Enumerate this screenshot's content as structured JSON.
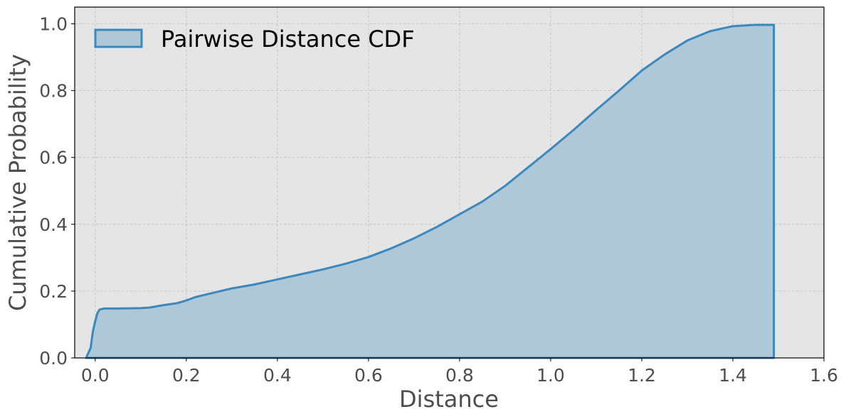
{
  "chart_data": {
    "type": "area",
    "title": "",
    "xlabel": "Distance",
    "ylabel": "Cumulative Probability",
    "xlim": [
      -0.045,
      1.6
    ],
    "ylim": [
      0,
      1.05
    ],
    "xticks": [
      0.0,
      0.2,
      0.4,
      0.6,
      0.8,
      1.0,
      1.2,
      1.4,
      1.6
    ],
    "xtick_labels": [
      "0.0",
      "0.2",
      "0.4",
      "0.6",
      "0.8",
      "1.0",
      "1.2",
      "1.4",
      "1.6"
    ],
    "yticks": [
      0.0,
      0.2,
      0.4,
      0.6,
      0.8,
      1.0
    ],
    "ytick_labels": [
      "0.0",
      "0.2",
      "0.4",
      "0.6",
      "0.8",
      "1.0"
    ],
    "grid": true,
    "legend_position": "upper-left",
    "colors": {
      "plot_background": "#e5e5e5",
      "line": "#3a88bd",
      "fill": "#afc8d8",
      "grid": "#b8b8b8",
      "text": "#4d4d4d"
    },
    "series": [
      {
        "name": "Pairwise Distance CDF",
        "x": [
          -0.02,
          -0.01,
          -0.005,
          0.0,
          0.005,
          0.01,
          0.02,
          0.05,
          0.1,
          0.12,
          0.15,
          0.18,
          0.2,
          0.22,
          0.25,
          0.3,
          0.35,
          0.4,
          0.45,
          0.5,
          0.55,
          0.6,
          0.65,
          0.7,
          0.75,
          0.8,
          0.85,
          0.9,
          0.95,
          1.0,
          1.05,
          1.1,
          1.15,
          1.2,
          1.25,
          1.3,
          1.35,
          1.4,
          1.45,
          1.49,
          1.49
        ],
        "y": [
          0.0,
          0.03,
          0.08,
          0.11,
          0.135,
          0.145,
          0.148,
          0.148,
          0.149,
          0.151,
          0.158,
          0.164,
          0.172,
          0.182,
          0.192,
          0.208,
          0.22,
          0.235,
          0.25,
          0.265,
          0.282,
          0.302,
          0.328,
          0.358,
          0.392,
          0.43,
          0.468,
          0.515,
          0.57,
          0.625,
          0.682,
          0.742,
          0.8,
          0.86,
          0.908,
          0.95,
          0.978,
          0.993,
          0.997,
          0.997,
          0.0
        ]
      }
    ]
  }
}
